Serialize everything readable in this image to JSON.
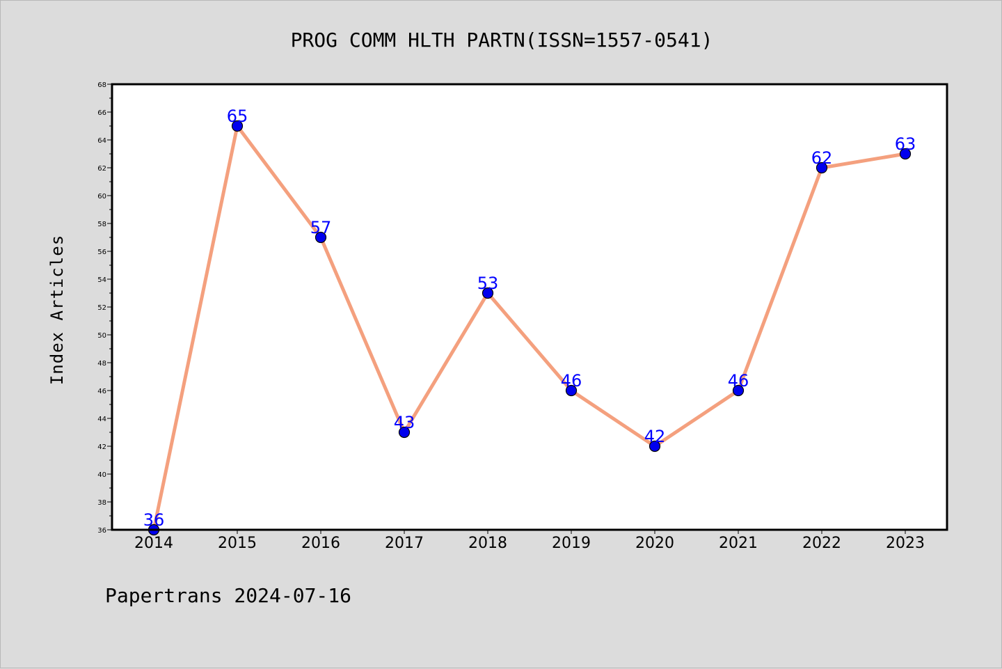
{
  "chart_data": {
    "type": "line",
    "title": "PROG COMM HLTH PARTN(ISSN=1557-0541)",
    "ylabel": "Index Articles",
    "xlabel": "",
    "categories": [
      "2014",
      "2015",
      "2016",
      "2017",
      "2018",
      "2019",
      "2020",
      "2021",
      "2022",
      "2023"
    ],
    "series": [
      {
        "values": [
          36,
          65,
          57,
          43,
          53,
          46,
          42,
          46,
          62,
          63
        ]
      }
    ],
    "data_labels": [
      "36",
      "65",
      "57",
      "43",
      "53",
      "46",
      "42",
      "46",
      "62",
      "63"
    ],
    "ylim": [
      36,
      68
    ],
    "y_ticks": [
      "36",
      "38",
      "40",
      "42",
      "44",
      "46",
      "48",
      "50",
      "52",
      "54",
      "56",
      "58",
      "60",
      "62",
      "64",
      "66",
      "68"
    ],
    "grid": false,
    "legend": "none",
    "footer": "Papertrans 2024-07-16",
    "colors": {
      "line": "#f4a07e",
      "marker": "#0000ee",
      "data_label": "#0000ff",
      "background": "#dcdcdc",
      "plot_background": "#ffffff"
    }
  }
}
